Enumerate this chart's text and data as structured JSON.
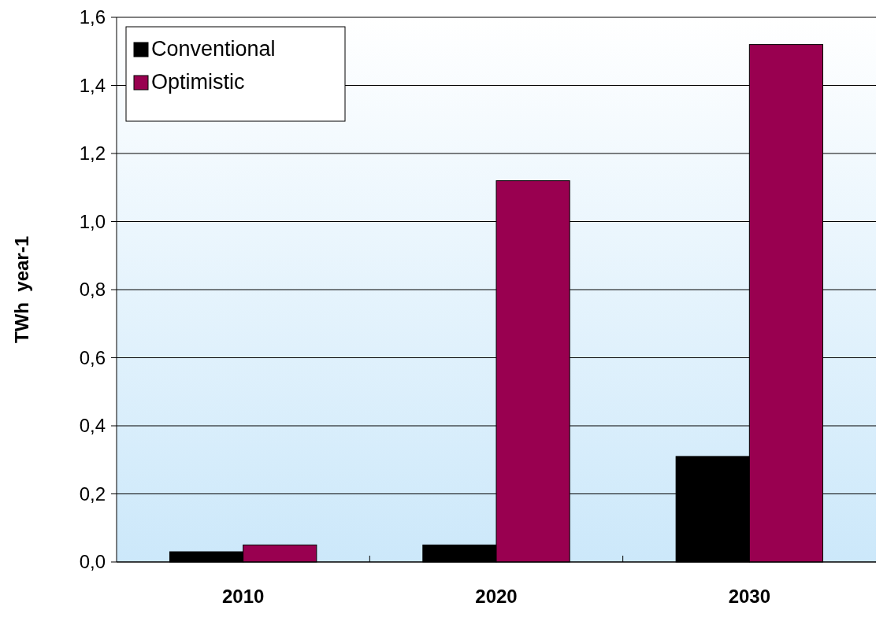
{
  "chart_data": {
    "type": "bar",
    "ylabel": "TWh  year-1",
    "categories": [
      "2010",
      "2020",
      "2030"
    ],
    "series": [
      {
        "name": "Conventional",
        "color": "#000000",
        "values": [
          0.03,
          0.05,
          0.31
        ]
      },
      {
        "name": "Optimistic",
        "color": "#990050",
        "values": [
          0.05,
          1.12,
          1.52
        ]
      }
    ],
    "ylim": [
      0,
      1.6
    ],
    "yticks": [
      {
        "value": 0,
        "label": "0,0"
      },
      {
        "value": 0.2,
        "label": "0,2"
      },
      {
        "value": 0.4,
        "label": "0,4"
      },
      {
        "value": 0.6,
        "label": "0,6"
      },
      {
        "value": 0.8,
        "label": "0,8"
      },
      {
        "value": 1.0,
        "label": "1,0"
      },
      {
        "value": 1.2,
        "label": "1,2"
      },
      {
        "value": 1.4,
        "label": "1,4"
      },
      {
        "value": 1.6,
        "label": "1,6"
      }
    ],
    "grid": "y",
    "legend": "top left"
  }
}
